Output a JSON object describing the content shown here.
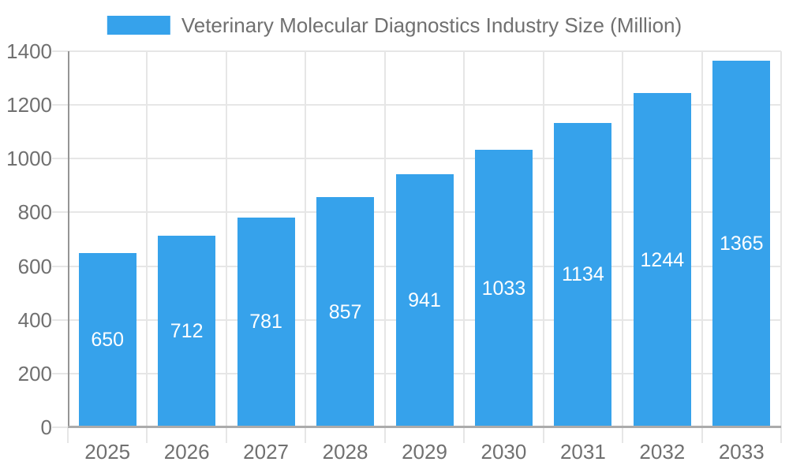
{
  "chart_data": {
    "type": "bar",
    "title": "Veterinary Molecular Diagnostics Industry Size (Million)",
    "categories": [
      "2025",
      "2026",
      "2027",
      "2028",
      "2029",
      "2030",
      "2031",
      "2032",
      "2033"
    ],
    "values": [
      650,
      712,
      781,
      857,
      941,
      1033,
      1134,
      1244,
      1365
    ],
    "xlabel": "",
    "ylabel": "",
    "ylim": [
      0,
      1400
    ],
    "yticks": [
      0,
      200,
      400,
      600,
      800,
      1000,
      1200,
      1400
    ],
    "grid": true,
    "legend_position": "top-center",
    "value_labels_position": "inside-center",
    "colors": {
      "bar": "#36A2EB",
      "value_label": "#FFFFFF",
      "grid": "#E6E6E6",
      "axis_line": "#959595",
      "baseline": "#ABABAB",
      "text": "#707070",
      "background": "#FFFFFF"
    }
  }
}
